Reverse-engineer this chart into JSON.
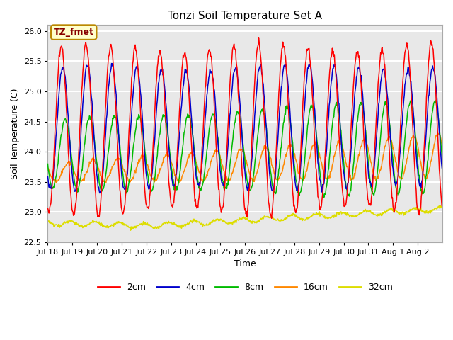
{
  "title": "Tonzi Soil Temperature Set A",
  "xlabel": "Time",
  "ylabel": "Soil Temperature (C)",
  "ylim": [
    22.5,
    26.1
  ],
  "xlim_days": [
    0,
    16
  ],
  "annotation": "TZ_fmet",
  "annotation_bg": "#ffffcc",
  "annotation_border": "#bb8800",
  "plot_bg": "#e8e8e8",
  "grid_color": "white",
  "colors": {
    "2cm": "#ff0000",
    "4cm": "#0000cc",
    "8cm": "#00bb00",
    "16cm": "#ff8800",
    "32cm": "#dddd00"
  },
  "x_tick_labels": [
    "Jul 18",
    "Jul 19",
    "Jul 20",
    "Jul 21",
    "Jul 22",
    "Jul 23",
    "Jul 24",
    "Jul 25",
    "Jul 26",
    "Jul 27",
    "Jul 28",
    "Jul 29",
    "Jul 30",
    "Jul 31",
    "Aug 1",
    "Aug 2"
  ],
  "x_tick_positions": [
    0,
    1,
    2,
    3,
    4,
    5,
    6,
    7,
    8,
    9,
    10,
    11,
    12,
    13,
    14,
    15
  ],
  "yticks": [
    22.5,
    23.0,
    23.5,
    24.0,
    24.5,
    25.0,
    25.5,
    26.0
  ]
}
